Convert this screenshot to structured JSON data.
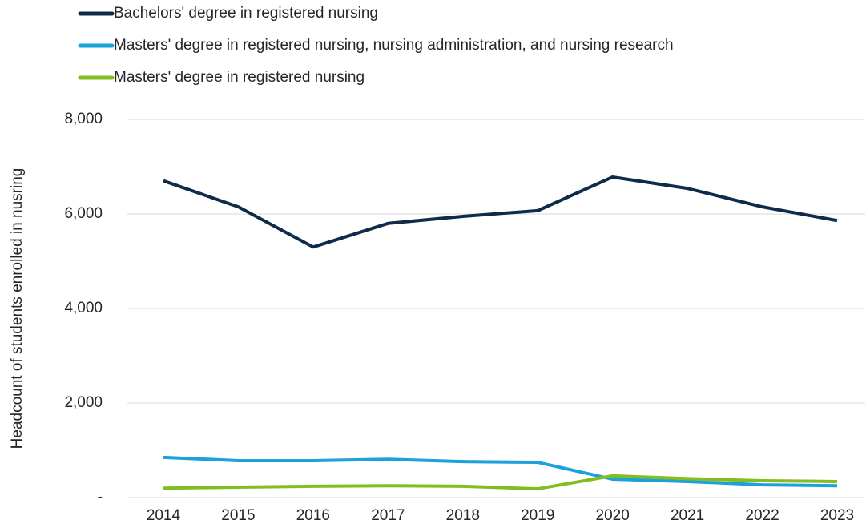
{
  "chart_data": {
    "type": "line",
    "y_label": "Headcount of students enrolled in nusring",
    "categories": [
      "2014",
      "2015",
      "2016",
      "2017",
      "2018",
      "2019",
      "2020",
      "2021",
      "2022",
      "2023"
    ],
    "series": [
      {
        "name": "Bachelors' degree in registered nursing",
        "color": "#0f2b4c",
        "values": [
          6700,
          6150,
          5300,
          5800,
          5950,
          6070,
          6780,
          6540,
          6150,
          5860
        ]
      },
      {
        "name": "Masters' degree in registered nursing, nursing administration, and nursing research",
        "color": "#1ba1dc",
        "values": [
          850,
          780,
          780,
          810,
          760,
          745,
          390,
          340,
          270,
          250
        ]
      },
      {
        "name": "Masters' degree in registered nursing",
        "color": "#84bd1f",
        "values": [
          200,
          220,
          240,
          250,
          240,
          185,
          460,
          400,
          355,
          340
        ]
      }
    ],
    "ylim": [
      0,
      8000
    ],
    "yticks": [
      {
        "value": 0,
        "label": "-"
      },
      {
        "value": 2000,
        "label": "2,000"
      },
      {
        "value": 4000,
        "label": "4,000"
      },
      {
        "value": 6000,
        "label": "6,000"
      },
      {
        "value": 8000,
        "label": "8,000"
      }
    ],
    "grid": true,
    "legend": "top-left"
  }
}
